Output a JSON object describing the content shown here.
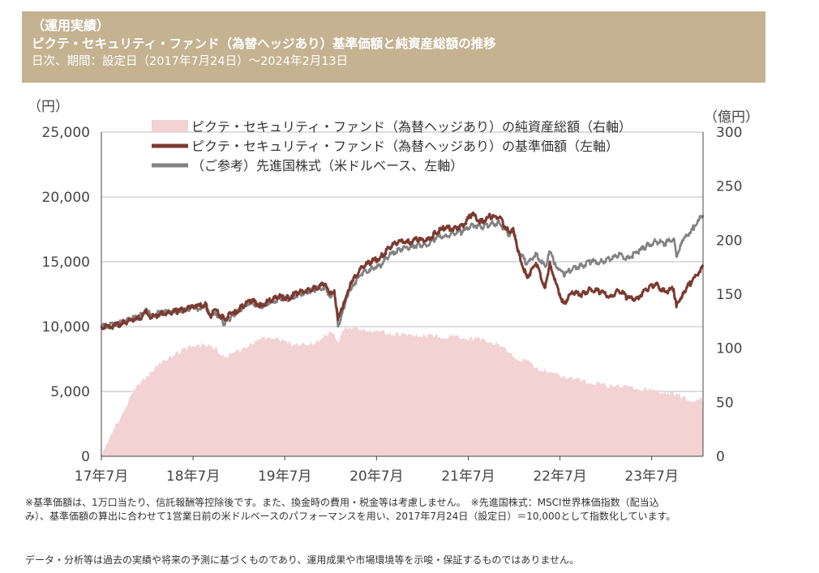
{
  "header": {
    "line1": "（運用実績）",
    "line2": "ピクテ・セキュリティ・ファンド（為替ヘッジあり）基準価額と純資産総額の推移",
    "line3": "日次、期間：設定日（2017年7月24日）～2024年2月13日"
  },
  "chart_data": {
    "type": "line",
    "left_axis_unit": "（円）",
    "right_axis_unit": "（億円）",
    "left_ylim": [
      0,
      25000
    ],
    "right_ylim": [
      0,
      300
    ],
    "left_ticks": [
      "0",
      "5,000",
      "10,000",
      "15,000",
      "20,000",
      "25,000"
    ],
    "right_ticks": [
      "0",
      "50",
      "100",
      "150",
      "200",
      "250",
      "300"
    ],
    "x_ticks": [
      "17年7月",
      "18年7月",
      "19年7月",
      "20年7月",
      "21年7月",
      "22年7月",
      "23年7月"
    ],
    "xlim": [
      2017.56,
      2024.12
    ],
    "grid": "horizontal",
    "legend_position": "top",
    "series": [
      {
        "name": "ピクテ・セキュリティ・ファンド（為替ヘッジあり）の純資産総額（右軸）",
        "axis": "right",
        "kind": "area",
        "color": "#f2d2d2",
        "x": [
          2017.56,
          2017.62,
          2017.7,
          2017.8,
          2017.9,
          2018.0,
          2018.1,
          2018.2,
          2018.3,
          2018.4,
          2018.5,
          2018.6,
          2018.7,
          2018.8,
          2018.9,
          2019.0,
          2019.1,
          2019.2,
          2019.3,
          2019.4,
          2019.5,
          2019.6,
          2019.7,
          2019.8,
          2019.9,
          2020.0,
          2020.05,
          2020.1,
          2020.14,
          2020.2,
          2020.25,
          2020.3,
          2020.4,
          2020.5,
          2020.6,
          2020.7,
          2020.8,
          2020.9,
          2021.0,
          2021.1,
          2021.2,
          2021.3,
          2021.4,
          2021.5,
          2021.6,
          2021.7,
          2021.8,
          2021.9,
          2022.0,
          2022.1,
          2022.2,
          2022.3,
          2022.4,
          2022.5,
          2022.6,
          2022.7,
          2022.8,
          2022.9,
          2023.0,
          2023.1,
          2023.2,
          2023.3,
          2023.4,
          2023.5,
          2023.6,
          2023.7,
          2023.8,
          2023.9,
          2024.0,
          2024.12
        ],
        "values": [
          2,
          12,
          25,
          42,
          58,
          70,
          78,
          85,
          92,
          96,
          100,
          104,
          102,
          100,
          92,
          95,
          100,
          104,
          108,
          111,
          108,
          105,
          104,
          102,
          106,
          112,
          115,
          113,
          106,
          116,
          120,
          119,
          117,
          116,
          115,
          114,
          113,
          112,
          113,
          111,
          112,
          110,
          111,
          109,
          109,
          108,
          106,
          103,
          96,
          90,
          88,
          82,
          79,
          76,
          74,
          72,
          70,
          68,
          67,
          65,
          66,
          64,
          62,
          62,
          60,
          60,
          58,
          55,
          52,
          52
        ]
      },
      {
        "name": "ピクテ・セキュリティ・ファンド（為替ヘッジあり）の基準価額（左軸）",
        "axis": "left",
        "kind": "line",
        "color": "#7b3a30",
        "x": [
          2017.56,
          2017.7,
          2017.8,
          2017.9,
          2018.0,
          2018.05,
          2018.1,
          2018.2,
          2018.3,
          2018.4,
          2018.5,
          2018.55,
          2018.6,
          2018.7,
          2018.75,
          2018.8,
          2018.9,
          2018.97,
          2019.0,
          2019.1,
          2019.2,
          2019.3,
          2019.4,
          2019.5,
          2019.6,
          2019.7,
          2019.8,
          2019.9,
          2020.0,
          2020.05,
          2020.1,
          2020.14,
          2020.2,
          2020.25,
          2020.3,
          2020.4,
          2020.5,
          2020.6,
          2020.7,
          2020.8,
          2020.9,
          2021.0,
          2021.1,
          2021.2,
          2021.3,
          2021.4,
          2021.5,
          2021.6,
          2021.7,
          2021.8,
          2021.9,
          2022.0,
          2022.05,
          2022.1,
          2022.2,
          2022.3,
          2022.4,
          2022.45,
          2022.5,
          2022.6,
          2022.7,
          2022.8,
          2022.9,
          2023.0,
          2023.1,
          2023.2,
          2023.3,
          2023.4,
          2023.5,
          2023.6,
          2023.7,
          2023.8,
          2023.83,
          2023.9,
          2024.0,
          2024.12
        ],
        "values": [
          10000,
          10050,
          10300,
          10500,
          10700,
          11300,
          10700,
          11000,
          11100,
          11200,
          11400,
          11650,
          11500,
          11700,
          10800,
          11300,
          10600,
          11050,
          11000,
          11600,
          12000,
          11600,
          12000,
          12300,
          12200,
          12600,
          12800,
          13000,
          13300,
          12500,
          12800,
          10500,
          11800,
          12800,
          13500,
          14600,
          15000,
          15300,
          16100,
          16600,
          16500,
          16700,
          16600,
          17200,
          17600,
          17600,
          17800,
          18700,
          18100,
          18500,
          18400,
          17300,
          17600,
          15800,
          13800,
          14900,
          13000,
          15000,
          13600,
          11800,
          12600,
          12500,
          12900,
          12700,
          12300,
          12800,
          12200,
          12200,
          12800,
          13300,
          12700,
          12900,
          11500,
          12600,
          13500,
          14600
        ]
      },
      {
        "name": "（ご参考）先進国株式（米ドルベース、左軸）",
        "axis": "left",
        "kind": "line",
        "color": "#828282",
        "x": [
          2017.56,
          2017.7,
          2017.8,
          2017.9,
          2018.0,
          2018.05,
          2018.1,
          2018.2,
          2018.3,
          2018.4,
          2018.5,
          2018.55,
          2018.6,
          2018.7,
          2018.75,
          2018.8,
          2018.9,
          2018.97,
          2019.0,
          2019.1,
          2019.2,
          2019.3,
          2019.4,
          2019.5,
          2019.6,
          2019.7,
          2019.8,
          2019.9,
          2020.0,
          2020.05,
          2020.1,
          2020.14,
          2020.2,
          2020.25,
          2020.3,
          2020.4,
          2020.5,
          2020.6,
          2020.7,
          2020.8,
          2020.9,
          2021.0,
          2021.1,
          2021.2,
          2021.3,
          2021.4,
          2021.5,
          2021.6,
          2021.7,
          2021.8,
          2021.9,
          2022.0,
          2022.05,
          2022.1,
          2022.2,
          2022.3,
          2022.4,
          2022.45,
          2022.5,
          2022.6,
          2022.7,
          2022.8,
          2022.9,
          2023.0,
          2023.1,
          2023.2,
          2023.3,
          2023.4,
          2023.5,
          2023.6,
          2023.7,
          2023.8,
          2023.83,
          2023.9,
          2024.0,
          2024.12
        ],
        "values": [
          10000,
          10150,
          10350,
          10600,
          10900,
          11400,
          10800,
          11100,
          11100,
          11200,
          11300,
          11500,
          11400,
          11500,
          10700,
          11100,
          10200,
          10700,
          10900,
          11500,
          11900,
          11500,
          11800,
          12200,
          12100,
          12500,
          12700,
          12900,
          13100,
          12400,
          12600,
          10000,
          11400,
          12400,
          13200,
          14100,
          14500,
          14700,
          15500,
          16000,
          16000,
          16300,
          16300,
          16800,
          17000,
          17200,
          17300,
          17900,
          17600,
          17900,
          18000,
          17100,
          17400,
          16000,
          14800,
          15600,
          14600,
          15800,
          14900,
          14000,
          14500,
          14700,
          15000,
          15000,
          15200,
          15500,
          15300,
          15700,
          16200,
          16600,
          16400,
          16800,
          15400,
          16600,
          17500,
          18600
        ]
      }
    ]
  },
  "notes": {
    "note1_line1": "※基準価額は、1万口当たり、信託報酬等控除後です。また、換金時の費用・税金等は考慮しません。　※先進国株式：MSCI世界株価指数（配当込",
    "note1_line2": "み）、基準価額の算出に合わせて1営業日前の米ドルベースのパフォーマンスを用い、2017年7月24日（設定日）＝10,000として指数化しています。",
    "note2": "データ・分析等は過去の実績や将来の予測に基づくものであり、運用成果や市場環境等を示唆・保証するものではありません。"
  }
}
